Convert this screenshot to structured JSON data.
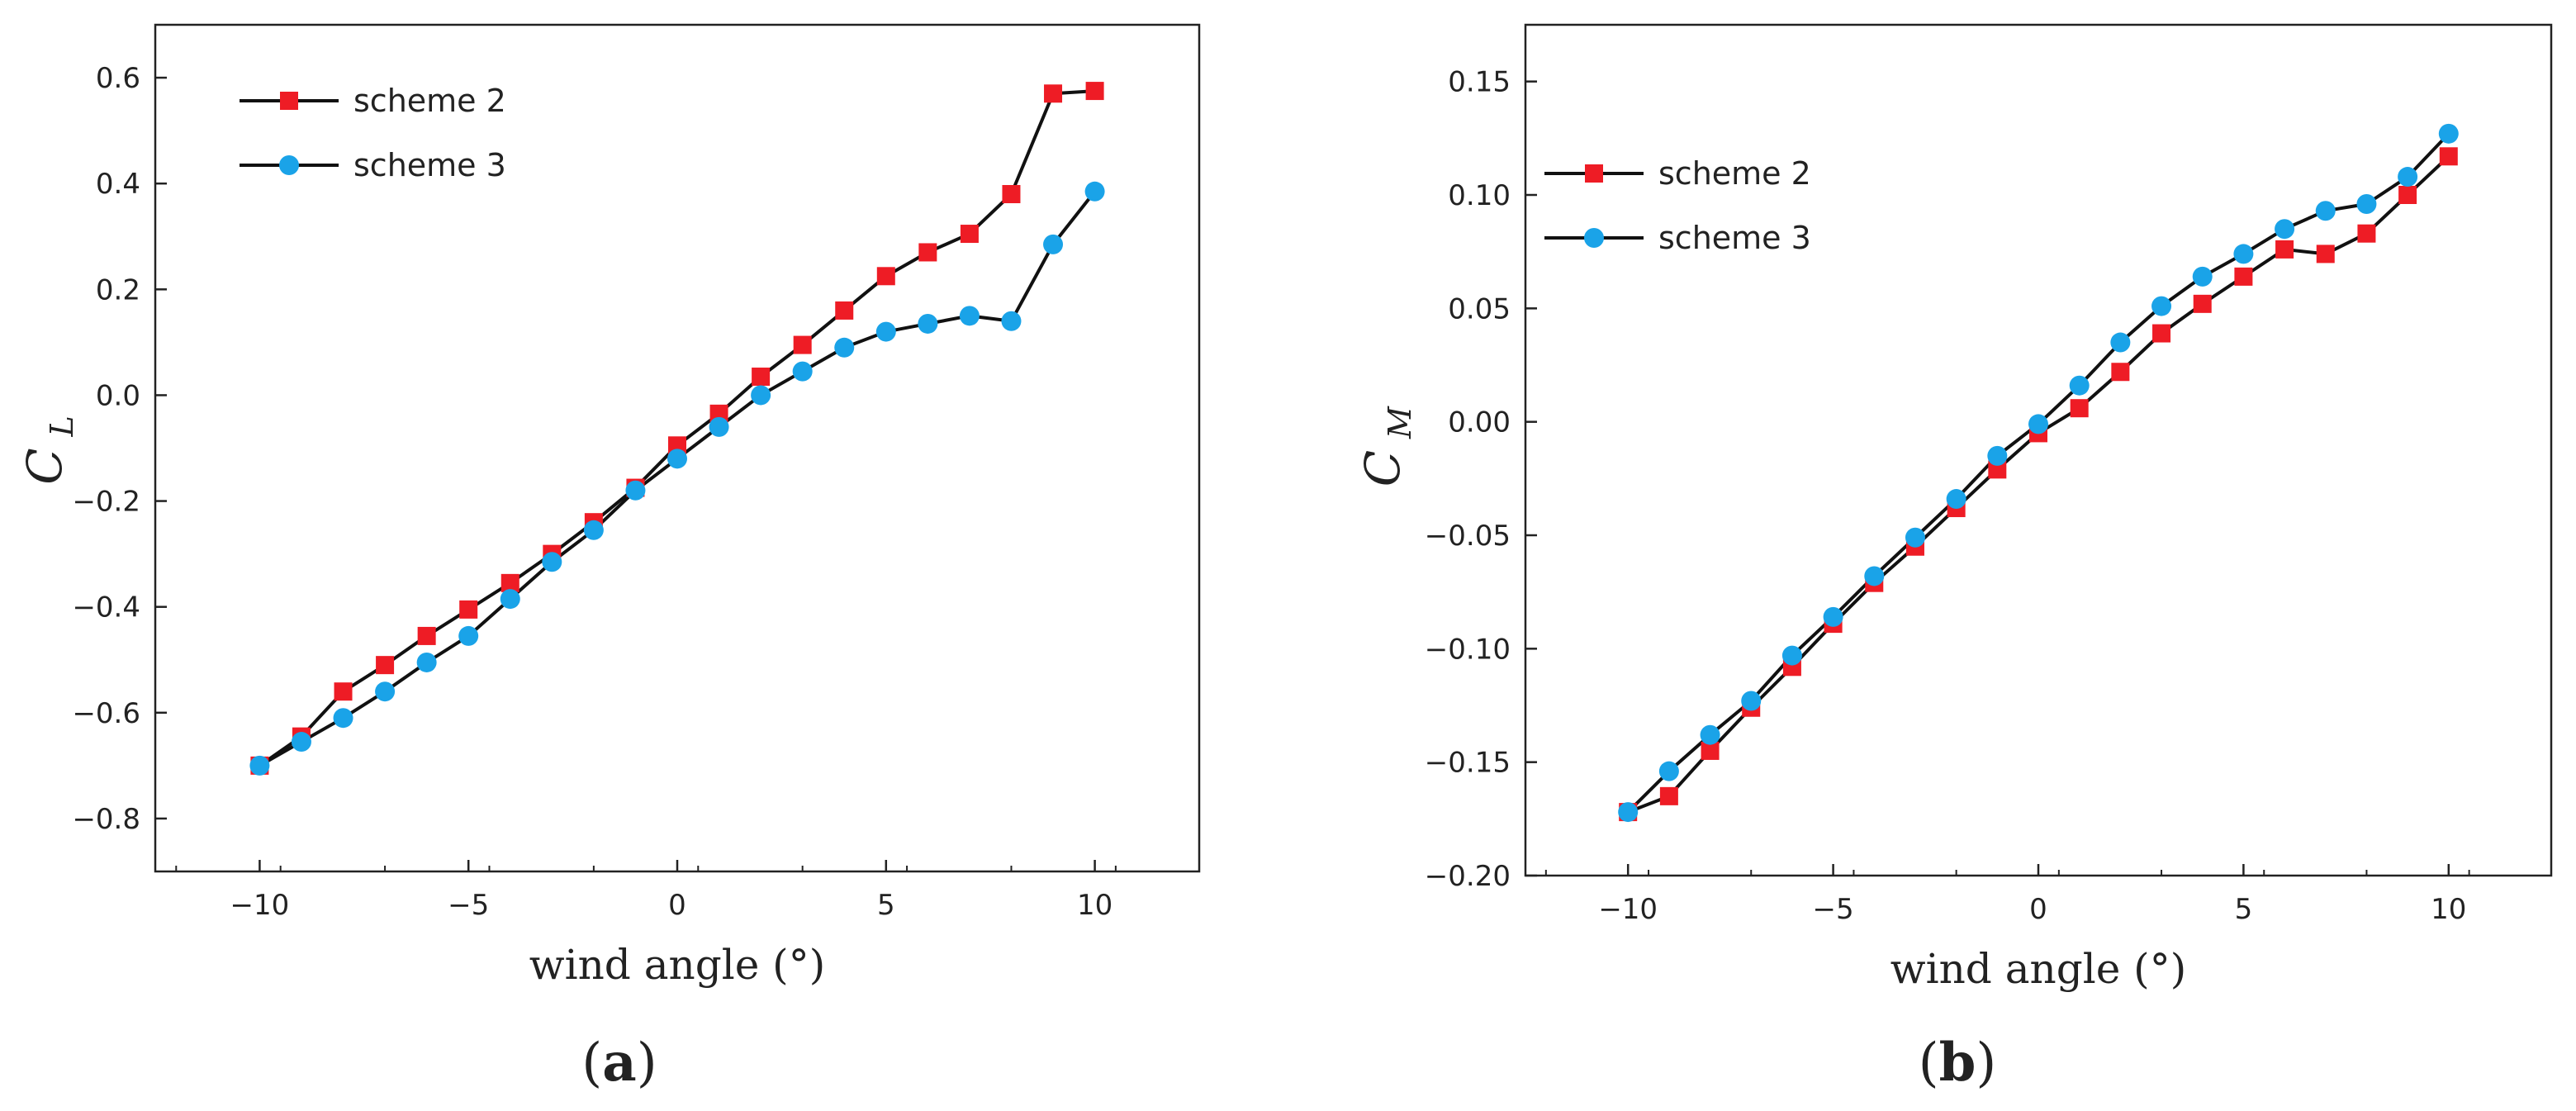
{
  "chart_data": [
    {
      "id": "a",
      "type": "line",
      "panel_label": "a",
      "xlabel": "wind angle (°)",
      "ylabel_main": "C",
      "ylabel_sub": "L",
      "xlim": [
        -12.5,
        12.5
      ],
      "ylim": [
        -0.9,
        0.7
      ],
      "xticks": [
        -10,
        -5,
        0,
        5,
        10
      ],
      "xtick_labels": [
        "−10",
        "−5",
        "0",
        "5",
        "10"
      ],
      "yticks": [
        -0.8,
        -0.6,
        -0.4,
        -0.2,
        0.0,
        0.2,
        0.4,
        0.6
      ],
      "ytick_labels": [
        "−0.8",
        "−0.6",
        "−0.4",
        "−0.2",
        "0.0",
        "0.2",
        "0.4",
        "0.6"
      ],
      "legend_position": "top-left",
      "x": [
        -10,
        -9,
        -8,
        -7,
        -6,
        -5,
        -4,
        -3,
        -2,
        -1,
        0,
        1,
        2,
        3,
        4,
        5,
        6,
        7,
        8,
        9,
        10
      ],
      "series": [
        {
          "name": "scheme 2",
          "marker": "square",
          "color": "#ee1c25",
          "values": [
            -0.7,
            -0.645,
            -0.56,
            -0.51,
            -0.455,
            -0.405,
            -0.355,
            -0.3,
            -0.24,
            -0.175,
            -0.095,
            -0.035,
            0.035,
            0.095,
            0.16,
            0.225,
            0.27,
            0.305,
            0.38,
            0.57,
            0.575
          ]
        },
        {
          "name": "scheme 3",
          "marker": "circle",
          "color": "#1aa3e8",
          "values": [
            -0.7,
            -0.655,
            -0.61,
            -0.56,
            -0.505,
            -0.455,
            -0.385,
            -0.315,
            -0.255,
            -0.18,
            -0.12,
            -0.06,
            0.0,
            0.045,
            0.09,
            0.12,
            0.135,
            0.15,
            0.14,
            0.285,
            0.385
          ]
        }
      ]
    },
    {
      "id": "b",
      "type": "line",
      "panel_label": "b",
      "xlabel": "wind angle (°)",
      "ylabel_main": "C",
      "ylabel_sub": "M",
      "xlim": [
        -12.5,
        12.5
      ],
      "ylim": [
        -0.2,
        0.175
      ],
      "xticks": [
        -10,
        -5,
        0,
        5,
        10
      ],
      "xtick_labels": [
        "−10",
        "−5",
        "0",
        "5",
        "10"
      ],
      "yticks": [
        -0.2,
        -0.15,
        -0.1,
        -0.05,
        0.0,
        0.05,
        0.1,
        0.15
      ],
      "ytick_labels": [
        "−0.20",
        "−0.15",
        "−0.10",
        "−0.05",
        "0.00",
        "0.05",
        "0.10",
        "0.15"
      ],
      "legend_position": "top-left",
      "x": [
        -10,
        -9,
        -8,
        -7,
        -6,
        -5,
        -4,
        -3,
        -2,
        -1,
        0,
        1,
        2,
        3,
        4,
        5,
        6,
        7,
        8,
        9,
        10
      ],
      "series": [
        {
          "name": "scheme 2",
          "marker": "square",
          "color": "#ee1c25",
          "values": [
            -0.172,
            -0.165,
            -0.145,
            -0.126,
            -0.108,
            -0.089,
            -0.071,
            -0.055,
            -0.038,
            -0.021,
            -0.005,
            0.006,
            0.022,
            0.039,
            0.052,
            0.064,
            0.076,
            0.074,
            0.083,
            0.1,
            0.117
          ]
        },
        {
          "name": "scheme 3",
          "marker": "circle",
          "color": "#1aa3e8",
          "values": [
            -0.172,
            -0.154,
            -0.138,
            -0.123,
            -0.103,
            -0.086,
            -0.068,
            -0.051,
            -0.034,
            -0.015,
            -0.001,
            0.016,
            0.035,
            0.051,
            0.064,
            0.074,
            0.085,
            0.093,
            0.096,
            0.108,
            0.127
          ]
        }
      ]
    }
  ]
}
